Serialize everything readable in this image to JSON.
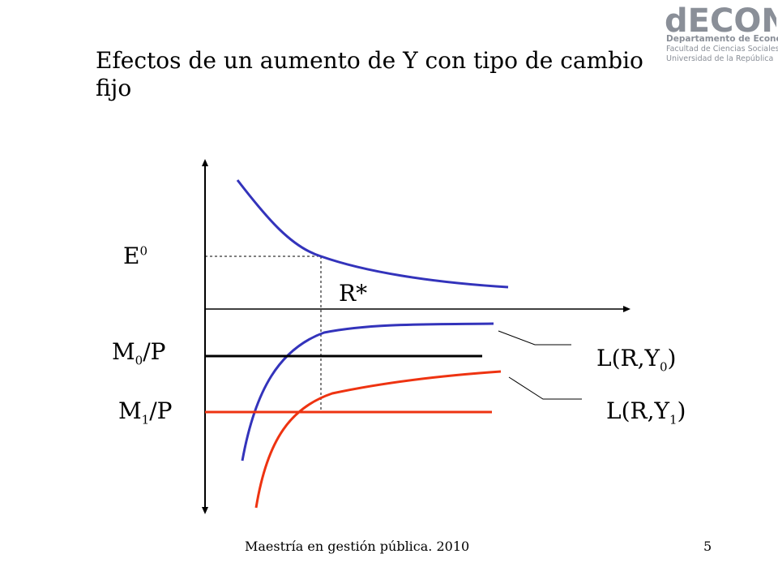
{
  "logo": {
    "brand": "dECON",
    "line1": "Departamento de Economía",
    "line2": "Facultad de Ciencias Sociales",
    "line3": "Universidad de la República",
    "color": "#8a8f98"
  },
  "title": "Efectos de un aumento de Y con tipo de cambio fijo",
  "diagram": {
    "colors": {
      "blue_curves": "#3333bb",
      "red_curves": "#ee3311",
      "axes": "#000000"
    },
    "labels": {
      "e0": {
        "main": "E",
        "sup": "0"
      },
      "rstar": "R*",
      "m0p": {
        "main": "M",
        "sub": "0",
        "tail": "/P"
      },
      "m1p": {
        "main": "M",
        "sub": "1",
        "tail": "/P"
      },
      "ly0": {
        "main": "L(R,Y",
        "sub": "0",
        "tail": ")"
      },
      "ly1": {
        "main": "L(R,Y",
        "sub": "1",
        "tail": ")"
      }
    }
  },
  "footer": "Maestría en gestión pública. 2010",
  "page_number": "5"
}
